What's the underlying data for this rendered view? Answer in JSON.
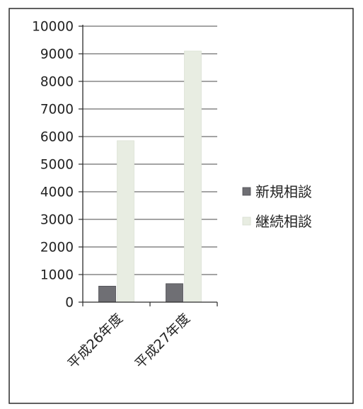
{
  "chart_data": {
    "type": "bar",
    "categories": [
      "平成26年度",
      "平成27年度"
    ],
    "series": [
      {
        "name": "新規相談",
        "values": [
          580,
          670
        ],
        "color": "#6f6f74"
      },
      {
        "name": "継続相談",
        "values": [
          5850,
          9100
        ],
        "color": "#e8ede2"
      }
    ],
    "ylim": [
      0,
      10000
    ],
    "yticks": [
      0,
      1000,
      2000,
      3000,
      4000,
      5000,
      6000,
      7000,
      8000,
      9000,
      10000
    ],
    "grid": true,
    "legend_position": "right"
  }
}
